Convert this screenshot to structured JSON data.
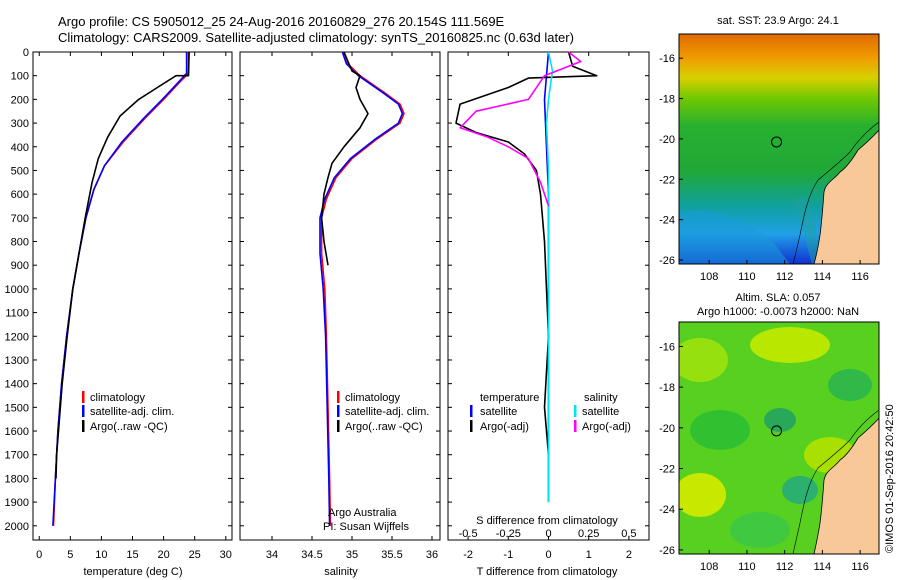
{
  "header": {
    "line1": "Argo profile: CS 5905012_25 24-Aug-2016 20160829_276 20.154S 111.569E",
    "line2": "Climatology: CARS2009. Satellite-adjusted climatology: synTS_20160825.nc (0.63d later)"
  },
  "colors": {
    "climatology": "#ff0000",
    "satellite": "#0000ff",
    "argo": "#000000",
    "salinity_satellite": "#00e5ee",
    "salinity_argo": "#ff00ff",
    "land": "#f9c899"
  },
  "chart_data": [
    {
      "type": "line",
      "panel": "temperature",
      "xlabel": "temperature (deg C)",
      "ylabel": "",
      "xlim": [
        -1,
        31
      ],
      "ylim": [
        2060,
        0
      ],
      "xticks": [
        0,
        5,
        10,
        15,
        20,
        25,
        30
      ],
      "yticks": [
        0,
        100,
        200,
        300,
        400,
        500,
        600,
        700,
        800,
        900,
        1000,
        1100,
        1200,
        1300,
        1400,
        1500,
        1600,
        1700,
        1800,
        1900,
        2000
      ],
      "legend_position": "lower-center",
      "series": [
        {
          "name": "climatology",
          "color": "#ff0000",
          "points": [
            [
              24,
              0
            ],
            [
              24,
              90
            ],
            [
              22.5,
              130
            ],
            [
              20,
              200
            ],
            [
              17,
              280
            ],
            [
              13.5,
              380
            ],
            [
              10.5,
              480
            ],
            [
              8.8,
              580
            ],
            [
              7.5,
              700
            ],
            [
              6.4,
              850
            ],
            [
              5.4,
              1000
            ],
            [
              4.4,
              1200
            ],
            [
              3.6,
              1400
            ],
            [
              3,
              1600
            ],
            [
              2.6,
              1800
            ],
            [
              2.3,
              2000
            ]
          ]
        },
        {
          "name": "satellite-adj. clim.",
          "color": "#0000ff",
          "points": [
            [
              23.7,
              0
            ],
            [
              23.7,
              90
            ],
            [
              22.3,
              130
            ],
            [
              19.8,
              200
            ],
            [
              16.8,
              280
            ],
            [
              13.3,
              380
            ],
            [
              10.5,
              480
            ],
            [
              8.8,
              580
            ],
            [
              7.5,
              700
            ],
            [
              6.4,
              850
            ],
            [
              5.4,
              1000
            ],
            [
              4.4,
              1200
            ],
            [
              3.6,
              1400
            ],
            [
              3,
              1600
            ],
            [
              2.6,
              1800
            ],
            [
              2.2,
              2000
            ]
          ]
        },
        {
          "name": "Argo(..raw -QC)",
          "color": "#000000",
          "points": [
            [
              24.1,
              0
            ],
            [
              24,
              100
            ],
            [
              22,
              100
            ],
            [
              19,
              150
            ],
            [
              16,
              200
            ],
            [
              13,
              270
            ],
            [
              11,
              360
            ],
            [
              9.5,
              450
            ],
            [
              8.5,
              550
            ],
            [
              7.4,
              700
            ],
            [
              6.4,
              850
            ],
            [
              5.4,
              1000
            ],
            [
              4.5,
              1200
            ],
            [
              3.7,
              1400
            ],
            [
              3.1,
              1600
            ],
            [
              2.8,
              1700
            ],
            [
              2.7,
              1800
            ]
          ]
        }
      ]
    },
    {
      "type": "line",
      "panel": "salinity",
      "xlabel": "salinity",
      "ylabel": "",
      "xlim": [
        33.6,
        36.1
      ],
      "ylim": [
        2060,
        0
      ],
      "xticks": [
        34,
        34.5,
        35,
        35.5,
        36
      ],
      "legend_position": "lower-center",
      "series": [
        {
          "name": "climatology",
          "color": "#ff0000",
          "points": [
            [
              34.9,
              0
            ],
            [
              34.95,
              50
            ],
            [
              35.1,
              100
            ],
            [
              35.4,
              170
            ],
            [
              35.6,
              220
            ],
            [
              35.65,
              260
            ],
            [
              35.6,
              300
            ],
            [
              35.3,
              370
            ],
            [
              35,
              450
            ],
            [
              34.8,
              530
            ],
            [
              34.68,
              620
            ],
            [
              34.62,
              700
            ],
            [
              34.62,
              850
            ],
            [
              34.66,
              1000
            ],
            [
              34.68,
              1200
            ],
            [
              34.7,
              1500
            ],
            [
              34.72,
              1800
            ],
            [
              34.73,
              2000
            ]
          ]
        },
        {
          "name": "satellite-adj. clim.",
          "color": "#0000ff",
          "points": [
            [
              34.88,
              0
            ],
            [
              34.93,
              50
            ],
            [
              35.08,
              100
            ],
            [
              35.38,
              170
            ],
            [
              35.58,
              220
            ],
            [
              35.63,
              260
            ],
            [
              35.58,
              300
            ],
            [
              35.28,
              370
            ],
            [
              34.98,
              450
            ],
            [
              34.78,
              530
            ],
            [
              34.66,
              620
            ],
            [
              34.6,
              700
            ],
            [
              34.6,
              850
            ],
            [
              34.64,
              1000
            ],
            [
              34.67,
              1200
            ],
            [
              34.69,
              1500
            ],
            [
              34.71,
              1800
            ],
            [
              34.72,
              2000
            ]
          ]
        },
        {
          "name": "Argo(..raw -QC)",
          "color": "#000000",
          "points": [
            [
              34.9,
              0
            ],
            [
              35,
              80
            ],
            [
              35.1,
              100
            ],
            [
              35.05,
              150
            ],
            [
              35.1,
              200
            ],
            [
              35.2,
              260
            ],
            [
              35.1,
              320
            ],
            [
              34.9,
              400
            ],
            [
              34.75,
              470
            ],
            [
              34.7,
              530
            ],
            [
              34.65,
              600
            ],
            [
              34.62,
              700
            ],
            [
              34.65,
              800
            ],
            [
              34.7,
              900
            ]
          ]
        }
      ]
    },
    {
      "type": "line",
      "panel": "difference",
      "xlabel": "T difference from climatology",
      "x2label": "S difference from climatology",
      "ylabel": "",
      "xlim": [
        -2.5,
        2.5
      ],
      "ylim": [
        2060,
        0
      ],
      "xticks": [
        -2,
        -1,
        0,
        1,
        2
      ],
      "x2ticks": [
        -0.5,
        -0.25,
        0,
        0.25,
        0.5
      ],
      "legend_position": "lower-center",
      "legend_groups": [
        "temperature",
        "salinity"
      ],
      "series": [
        {
          "name": "satellite",
          "group": "temperature",
          "color": "#0000ff",
          "points": [
            [
              0,
              0
            ],
            [
              -0.05,
              100
            ],
            [
              -0.1,
              200
            ],
            [
              -0.05,
              400
            ],
            [
              0,
              600
            ],
            [
              0,
              1000
            ],
            [
              0,
              1500
            ],
            [
              0,
              1900
            ]
          ]
        },
        {
          "name": "Argo(-adj)",
          "group": "temperature",
          "color": "#000000",
          "points": [
            [
              0.5,
              0
            ],
            [
              0.6,
              60
            ],
            [
              1.2,
              100
            ],
            [
              -0.5,
              110
            ],
            [
              -1,
              150
            ],
            [
              -2.2,
              220
            ],
            [
              -2.3,
              300
            ],
            [
              -1.8,
              340
            ],
            [
              -1,
              380
            ],
            [
              -0.6,
              430
            ],
            [
              -0.3,
              500
            ],
            [
              -0.2,
              600
            ],
            [
              -0.1,
              800
            ],
            [
              -0.05,
              1000
            ],
            [
              0,
              1200
            ],
            [
              -0.1,
              1500
            ],
            [
              0,
              1700
            ]
          ]
        },
        {
          "name": "satellite",
          "group": "salinity",
          "color": "#00e5ee",
          "points": [
            [
              0,
              0
            ],
            [
              0.1,
              80
            ],
            [
              0,
              200
            ],
            [
              -0.05,
              300
            ],
            [
              0,
              500
            ],
            [
              0,
              1000
            ],
            [
              0,
              1900
            ]
          ]
        },
        {
          "name": "Argo(-adj)",
          "group": "salinity",
          "color": "#ff00ff",
          "points": [
            [
              0.5,
              0
            ],
            [
              0.8,
              40
            ],
            [
              -0.1,
              100
            ],
            [
              -0.5,
              200
            ],
            [
              -1.8,
              250
            ],
            [
              -2.2,
              320
            ],
            [
              -1.5,
              360
            ],
            [
              -1,
              400
            ],
            [
              -0.5,
              450
            ],
            [
              -0.2,
              550
            ],
            [
              0,
              650
            ]
          ]
        }
      ]
    }
  ],
  "legend_temperature": {
    "items": [
      {
        "label": "climatology",
        "color": "#ff0000"
      },
      {
        "label": "satellite-adj. clim.",
        "color": "#0000ff"
      },
      {
        "label": "Argo(..raw -QC)",
        "color": "#000000"
      }
    ]
  },
  "legend_salinity": {
    "items": [
      {
        "label": "climatology",
        "color": "#ff0000"
      },
      {
        "label": "satellite-adj. clim.",
        "color": "#0000ff"
      },
      {
        "label": "Argo(..raw -QC)",
        "color": "#000000"
      }
    ]
  },
  "legend_difference": {
    "temperature_title": "temperature",
    "salinity_title": "salinity",
    "temperature_items": [
      {
        "label": "satellite",
        "color": "#0000ff"
      },
      {
        "label": "Argo(-adj)",
        "color": "#000000"
      }
    ],
    "salinity_items": [
      {
        "label": "satellite",
        "color": "#00e5ee"
      },
      {
        "label": "Argo(-adj)",
        "color": "#ff00ff"
      }
    ]
  },
  "credit": {
    "line1": "Argo Australia",
    "line2": "PI: Susan Wijffels"
  },
  "map_sst": {
    "title": "sat. SST: 23.9 Argo: 24.1",
    "xticks": [
      "108",
      "110",
      "112",
      "114",
      "116"
    ],
    "yticks": [
      "-16",
      "-18",
      "-20",
      "-22",
      "-24",
      "-26"
    ],
    "argo_position": [
      111.57,
      -20.15
    ],
    "lon_range": [
      106.4,
      117
    ],
    "lat_range": [
      -26.2,
      -14.8
    ]
  },
  "map_sla": {
    "title1": "Altim. SLA: 0.057",
    "title2": "Argo h1000: -0.0073 h2000: NaN",
    "xticks": [
      "108",
      "110",
      "112",
      "114",
      "116"
    ],
    "yticks": [
      "-16",
      "-18",
      "-20",
      "-22",
      "-24",
      "-26"
    ],
    "argo_position": [
      111.57,
      -20.15
    ],
    "lon_range": [
      106.4,
      117
    ],
    "lat_range": [
      -26.2,
      -14.8
    ]
  },
  "watermark": "©IMOS 01-Sep-2016 20:42:50"
}
